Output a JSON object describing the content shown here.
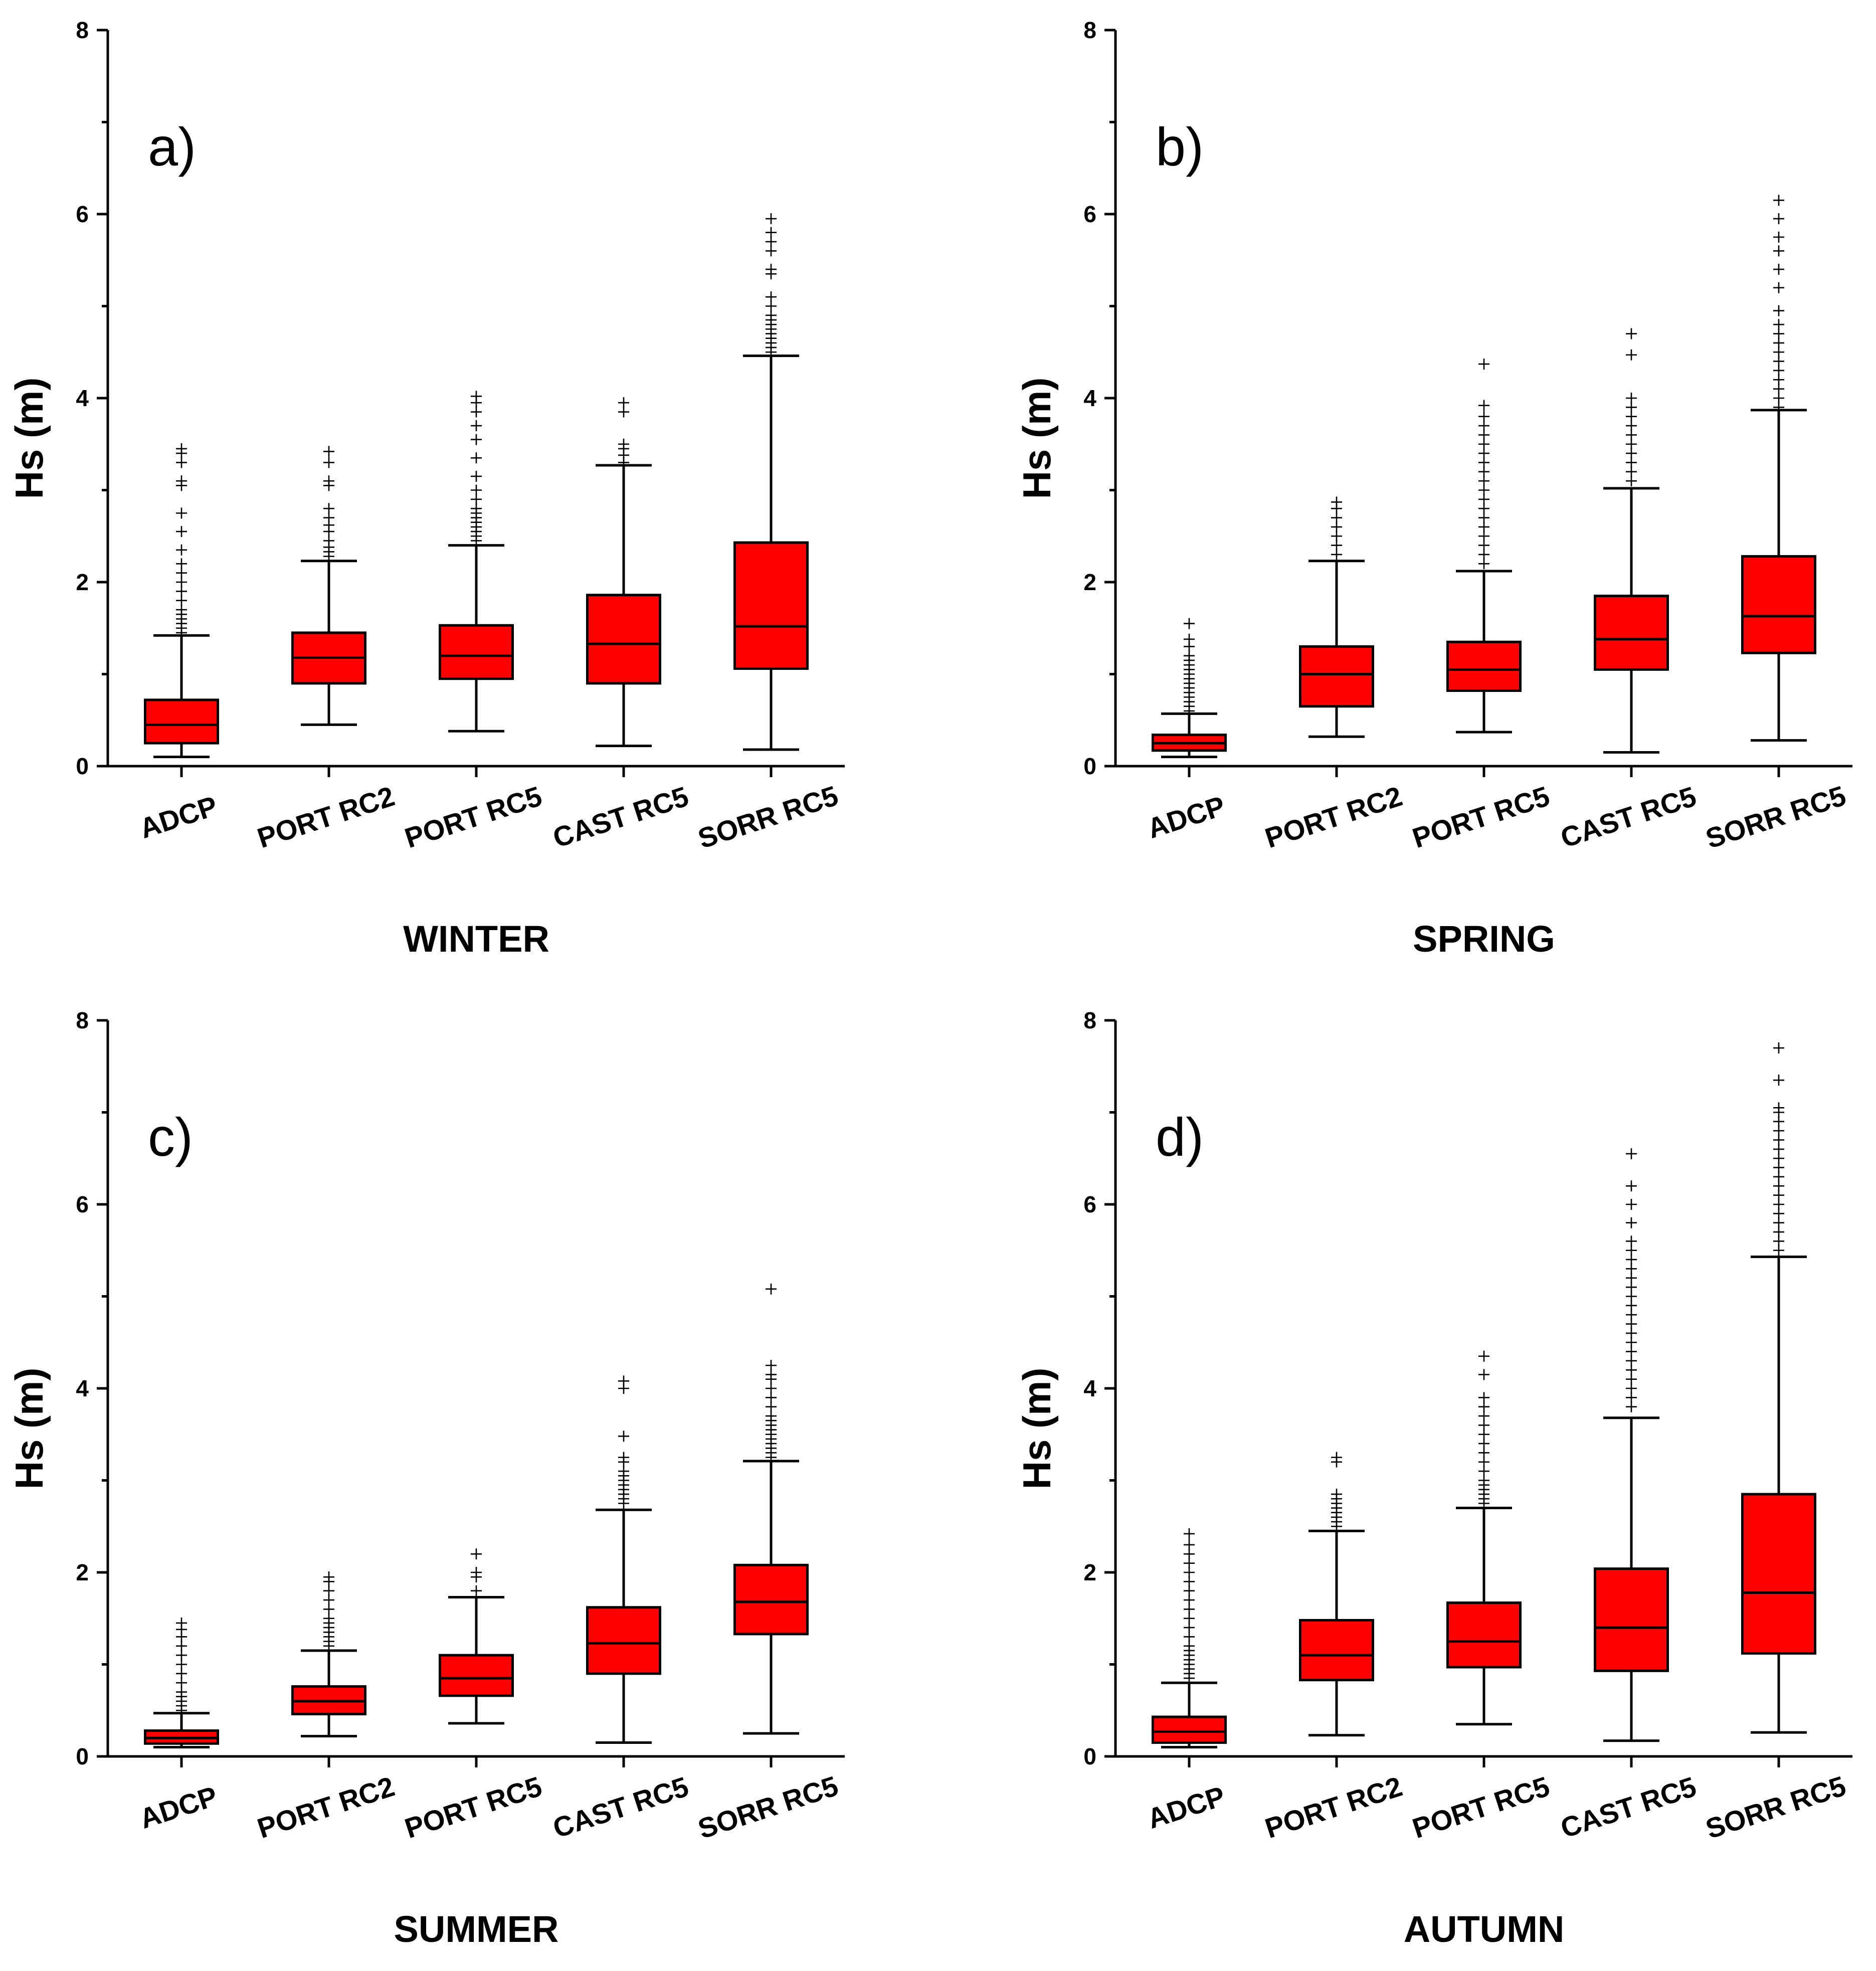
{
  "colors": {
    "box_fill": "#ff0000",
    "stroke": "#000000",
    "background": "#ffffff"
  },
  "chart_data": [
    {
      "type": "boxplot",
      "panel_label": "a)",
      "title": "WINTER",
      "ylabel": "Hs (m)",
      "ylim": [
        0,
        8
      ],
      "yticks": [
        "0",
        "2",
        "4",
        "6",
        "8"
      ],
      "categories": [
        "ADCP",
        "PORT RC2",
        "PORT RC5",
        "CAST RC5",
        "SORR RC5"
      ],
      "boxes": [
        {
          "min": 0.1,
          "q1": 0.25,
          "median": 0.45,
          "q3": 0.72,
          "max": 1.42,
          "outliers": [
            1.45,
            1.5,
            1.55,
            1.6,
            1.65,
            1.7,
            1.8,
            1.9,
            2.0,
            2.1,
            2.2,
            2.35,
            2.55,
            2.75,
            3.05,
            3.1,
            3.3,
            3.4,
            3.45
          ]
        },
        {
          "min": 0.45,
          "q1": 0.9,
          "median": 1.18,
          "q3": 1.45,
          "max": 2.23,
          "outliers": [
            2.28,
            2.33,
            2.38,
            2.45,
            2.55,
            2.62,
            2.7,
            2.8,
            3.05,
            3.1,
            3.3,
            3.42
          ]
        },
        {
          "min": 0.38,
          "q1": 0.95,
          "median": 1.2,
          "q3": 1.53,
          "max": 2.4,
          "outliers": [
            2.45,
            2.5,
            2.55,
            2.6,
            2.65,
            2.7,
            2.75,
            2.8,
            2.9,
            3.0,
            3.15,
            3.35,
            3.55,
            3.7,
            3.85,
            3.95,
            4.02
          ]
        },
        {
          "min": 0.22,
          "q1": 0.9,
          "median": 1.33,
          "q3": 1.86,
          "max": 3.27,
          "outliers": [
            3.3,
            3.38,
            3.45,
            3.5,
            3.85,
            3.95
          ]
        },
        {
          "min": 0.18,
          "q1": 1.06,
          "median": 1.52,
          "q3": 2.43,
          "max": 4.46,
          "outliers": [
            4.5,
            4.55,
            4.6,
            4.65,
            4.7,
            4.75,
            4.8,
            4.85,
            4.9,
            5.0,
            5.1,
            5.35,
            5.4,
            5.6,
            5.7,
            5.8,
            5.95
          ]
        }
      ]
    },
    {
      "type": "boxplot",
      "panel_label": "b)",
      "title": "SPRING",
      "ylabel": "Hs (m)",
      "ylim": [
        0,
        8
      ],
      "yticks": [
        "0",
        "2",
        "4",
        "6",
        "8"
      ],
      "categories": [
        "ADCP",
        "PORT RC2",
        "PORT RC5",
        "CAST RC5",
        "SORR RC5"
      ],
      "boxes": [
        {
          "min": 0.1,
          "q1": 0.17,
          "median": 0.25,
          "q3": 0.34,
          "max": 0.57,
          "outliers": [
            0.6,
            0.65,
            0.7,
            0.75,
            0.8,
            0.85,
            0.9,
            0.95,
            1.0,
            1.05,
            1.1,
            1.15,
            1.2,
            1.3,
            1.38,
            1.55
          ]
        },
        {
          "min": 0.32,
          "q1": 0.65,
          "median": 1.0,
          "q3": 1.3,
          "max": 2.23,
          "outliers": [
            2.3,
            2.4,
            2.5,
            2.6,
            2.7,
            2.8,
            2.87
          ]
        },
        {
          "min": 0.37,
          "q1": 0.82,
          "median": 1.05,
          "q3": 1.35,
          "max": 2.12,
          "outliers": [
            2.2,
            2.3,
            2.4,
            2.5,
            2.6,
            2.7,
            2.8,
            2.9,
            3.0,
            3.1,
            3.2,
            3.3,
            3.4,
            3.5,
            3.6,
            3.7,
            3.8,
            3.92,
            4.37
          ]
        },
        {
          "min": 0.15,
          "q1": 1.05,
          "median": 1.38,
          "q3": 1.85,
          "max": 3.02,
          "outliers": [
            3.1,
            3.2,
            3.3,
            3.4,
            3.5,
            3.6,
            3.7,
            3.8,
            3.9,
            4.0,
            4.47,
            4.7
          ]
        },
        {
          "min": 0.28,
          "q1": 1.23,
          "median": 1.63,
          "q3": 2.28,
          "max": 3.87,
          "outliers": [
            3.9,
            4.0,
            4.1,
            4.2,
            4.3,
            4.4,
            4.5,
            4.6,
            4.7,
            4.8,
            4.95,
            5.2,
            5.4,
            5.6,
            5.75,
            5.95,
            6.15
          ]
        }
      ]
    },
    {
      "type": "boxplot",
      "panel_label": "c)",
      "title": "SUMMER",
      "ylabel": "Hs (m)",
      "ylim": [
        0,
        8
      ],
      "yticks": [
        "0",
        "2",
        "4",
        "6",
        "8"
      ],
      "categories": [
        "ADCP",
        "PORT RC2",
        "PORT RC5",
        "CAST RC5",
        "SORR RC5"
      ],
      "boxes": [
        {
          "min": 0.1,
          "q1": 0.14,
          "median": 0.2,
          "q3": 0.28,
          "max": 0.47,
          "outliers": [
            0.5,
            0.55,
            0.6,
            0.65,
            0.7,
            0.8,
            0.9,
            1.0,
            1.1,
            1.2,
            1.3,
            1.38,
            1.45
          ]
        },
        {
          "min": 0.22,
          "q1": 0.46,
          "median": 0.6,
          "q3": 0.76,
          "max": 1.15,
          "outliers": [
            1.2,
            1.25,
            1.3,
            1.35,
            1.4,
            1.45,
            1.5,
            1.6,
            1.7,
            1.8,
            1.9,
            1.95
          ]
        },
        {
          "min": 0.36,
          "q1": 0.66,
          "median": 0.85,
          "q3": 1.1,
          "max": 1.73,
          "outliers": [
            1.8,
            1.95,
            2.0,
            2.2
          ]
        },
        {
          "min": 0.15,
          "q1": 0.9,
          "median": 1.23,
          "q3": 1.62,
          "max": 2.68,
          "outliers": [
            2.75,
            2.8,
            2.85,
            2.9,
            2.95,
            3.0,
            3.05,
            3.1,
            3.2,
            3.25,
            3.48,
            4.0,
            4.08
          ]
        },
        {
          "min": 0.25,
          "q1": 1.33,
          "median": 1.68,
          "q3": 2.08,
          "max": 3.21,
          "outliers": [
            3.25,
            3.3,
            3.35,
            3.4,
            3.45,
            3.5,
            3.55,
            3.6,
            3.65,
            3.7,
            3.8,
            3.9,
            4.0,
            4.1,
            4.15,
            4.25,
            5.08
          ]
        }
      ]
    },
    {
      "type": "boxplot",
      "panel_label": "d)",
      "title": "AUTUMN",
      "ylabel": "Hs (m)",
      "ylim": [
        0,
        8
      ],
      "yticks": [
        "0",
        "2",
        "4",
        "6",
        "8"
      ],
      "categories": [
        "ADCP",
        "PORT RC2",
        "PORT RC5",
        "CAST RC5",
        "SORR RC5"
      ],
      "boxes": [
        {
          "min": 0.1,
          "q1": 0.15,
          "median": 0.27,
          "q3": 0.43,
          "max": 0.8,
          "outliers": [
            0.85,
            0.9,
            0.95,
            1.0,
            1.05,
            1.1,
            1.15,
            1.2,
            1.3,
            1.4,
            1.5,
            1.6,
            1.7,
            1.8,
            1.9,
            2.0,
            2.1,
            2.2,
            2.3,
            2.42
          ]
        },
        {
          "min": 0.23,
          "q1": 0.83,
          "median": 1.1,
          "q3": 1.48,
          "max": 2.45,
          "outliers": [
            2.5,
            2.55,
            2.6,
            2.65,
            2.7,
            2.75,
            2.8,
            2.85,
            3.2,
            3.25
          ]
        },
        {
          "min": 0.35,
          "q1": 0.97,
          "median": 1.25,
          "q3": 1.67,
          "max": 2.7,
          "outliers": [
            2.75,
            2.8,
            2.85,
            2.9,
            2.95,
            3.0,
            3.1,
            3.2,
            3.3,
            3.4,
            3.5,
            3.6,
            3.7,
            3.8,
            3.9,
            4.15,
            4.35
          ]
        },
        {
          "min": 0.17,
          "q1": 0.93,
          "median": 1.4,
          "q3": 2.04,
          "max": 3.68,
          "outliers": [
            3.8,
            3.9,
            4.0,
            4.1,
            4.2,
            4.3,
            4.4,
            4.5,
            4.6,
            4.7,
            4.8,
            4.9,
            5.0,
            5.1,
            5.2,
            5.3,
            5.4,
            5.5,
            5.6,
            5.8,
            6.0,
            6.2,
            6.55
          ]
        },
        {
          "min": 0.26,
          "q1": 1.12,
          "median": 1.78,
          "q3": 2.85,
          "max": 5.43,
          "outliers": [
            5.5,
            5.6,
            5.7,
            5.8,
            5.9,
            6.0,
            6.1,
            6.2,
            6.3,
            6.4,
            6.5,
            6.6,
            6.7,
            6.8,
            6.9,
            7.0,
            7.05,
            7.35,
            7.7
          ]
        }
      ]
    }
  ]
}
